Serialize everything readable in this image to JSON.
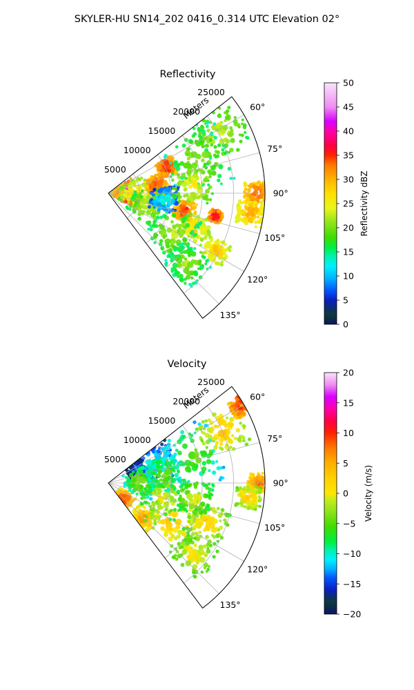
{
  "figure": {
    "title": "SKYLER-HU  SN14_202  0416_0.314 UTC Elevation 02°"
  },
  "chart_data": [
    {
      "type": "heatmap",
      "projection": "polar-sector",
      "title": "Reflectivity",
      "range_label": "Meters",
      "range_ticks": [
        "5000",
        "10000",
        "15000",
        "20000",
        "25000"
      ],
      "range_max": 25000,
      "azimuth_range": [
        52,
        143
      ],
      "azimuth_ticks": [
        "60°",
        "75°",
        "90°",
        "105°",
        "120°",
        "135°"
      ],
      "grid": true,
      "colorbar": {
        "label": "Reflectivity dBZ",
        "min": 0,
        "max": 50,
        "ticks": [
          "0",
          "5",
          "10",
          "15",
          "20",
          "25",
          "30",
          "35",
          "40",
          "45",
          "50"
        ],
        "stops": [
          {
            "v": 0,
            "c": "#0c1565"
          },
          {
            "v": 2,
            "c": "#0d3b37"
          },
          {
            "v": 5,
            "c": "#0a1fc0"
          },
          {
            "v": 7,
            "c": "#0455ff"
          },
          {
            "v": 9.5,
            "c": "#00b2ff"
          },
          {
            "v": 12,
            "c": "#00f0ff"
          },
          {
            "v": 14,
            "c": "#00f2b0"
          },
          {
            "v": 16,
            "c": "#00f040"
          },
          {
            "v": 18,
            "c": "#40dc00"
          },
          {
            "v": 21,
            "c": "#8ee41a"
          },
          {
            "v": 24,
            "c": "#e8f51c"
          },
          {
            "v": 27,
            "c": "#ffe100"
          },
          {
            "v": 30,
            "c": "#ffb300"
          },
          {
            "v": 33,
            "c": "#ff7a00"
          },
          {
            "v": 35,
            "c": "#ff2200"
          },
          {
            "v": 37,
            "c": "#ff0044"
          },
          {
            "v": 40,
            "c": "#ff00aa"
          },
          {
            "v": 42,
            "c": "#d800ff"
          },
          {
            "v": 45,
            "c": "#f08df2"
          },
          {
            "v": 50,
            "c": "#fae3fa"
          }
        ]
      },
      "cells": [
        {
          "az": 88,
          "r": 2800,
          "v": 40,
          "size": 2200
        },
        {
          "az": 86,
          "r": 1600,
          "v": 33,
          "size": 1800
        },
        {
          "az": 92,
          "r": 4200,
          "v": 28,
          "size": 3000
        },
        {
          "az": 80,
          "r": 7800,
          "v": 36,
          "size": 2200
        },
        {
          "az": 66,
          "r": 10200,
          "v": 37,
          "size": 2000
        },
        {
          "az": 62,
          "r": 20500,
          "v": 24,
          "size": 5000
        },
        {
          "az": 70,
          "r": 15500,
          "v": 22,
          "size": 6000
        },
        {
          "az": 90,
          "r": 23800,
          "v": 35,
          "size": 2600
        },
        {
          "az": 98,
          "r": 23000,
          "v": 32,
          "size": 2800
        },
        {
          "az": 103,
          "r": 12500,
          "v": 36,
          "size": 2200
        },
        {
          "az": 108,
          "r": 6500,
          "v": 24,
          "size": 3500
        },
        {
          "az": 97,
          "r": 9000,
          "v": 14,
          "size": 2800
        },
        {
          "az": 112,
          "r": 15000,
          "v": 28,
          "size": 3000
        },
        {
          "az": 118,
          "r": 19500,
          "v": 30,
          "size": 2500
        },
        {
          "az": 122,
          "r": 12000,
          "v": 23,
          "size": 4500
        },
        {
          "az": 132,
          "r": 17000,
          "v": 22,
          "size": 4000
        },
        {
          "az": 102,
          "r": 17500,
          "v": 38,
          "size": 1400
        },
        {
          "az": 85,
          "r": 13500,
          "v": 26,
          "size": 4000
        }
      ]
    },
    {
      "type": "heatmap",
      "projection": "polar-sector",
      "title": "Velocity",
      "range_label": "Meters",
      "range_ticks": [
        "5000",
        "10000",
        "15000",
        "20000",
        "25000"
      ],
      "range_max": 25000,
      "azimuth_range": [
        52,
        143
      ],
      "azimuth_ticks": [
        "60°",
        "75°",
        "90°",
        "105°",
        "120°",
        "135°"
      ],
      "grid": true,
      "colorbar": {
        "label": "Velocity (m/s)",
        "min": -20,
        "max": 20,
        "ticks": [
          "−20",
          "−15",
          "−10",
          "−5",
          "0",
          "5",
          "10",
          "15",
          "20"
        ],
        "stops": [
          {
            "v": -20,
            "c": "#0c1565"
          },
          {
            "v": -18,
            "c": "#0d3b37"
          },
          {
            "v": -16,
            "c": "#0a1fc0"
          },
          {
            "v": -14,
            "c": "#0455ff"
          },
          {
            "v": -12.5,
            "c": "#00b2ff"
          },
          {
            "v": -11,
            "c": "#00f0ff"
          },
          {
            "v": -9.5,
            "c": "#00f2b0"
          },
          {
            "v": -8,
            "c": "#00f040"
          },
          {
            "v": -5.5,
            "c": "#40dc00"
          },
          {
            "v": -3,
            "c": "#8ee41a"
          },
          {
            "v": -1,
            "c": "#c8ec1c"
          },
          {
            "v": 0,
            "c": "#ffe600"
          },
          {
            "v": 2.5,
            "c": "#ffd000"
          },
          {
            "v": 5,
            "c": "#ffb000"
          },
          {
            "v": 7.5,
            "c": "#ff7a00"
          },
          {
            "v": 10,
            "c": "#ff2200"
          },
          {
            "v": 12,
            "c": "#ff0044"
          },
          {
            "v": 14,
            "c": "#ff00aa"
          },
          {
            "v": 16,
            "c": "#d800ff"
          },
          {
            "v": 18,
            "c": "#f08df2"
          },
          {
            "v": 20,
            "c": "#fae3fa"
          }
        ]
      },
      "cells": [
        {
          "az": 64,
          "r": 5000,
          "v": -12,
          "size": 2000
        },
        {
          "az": 68,
          "r": 8500,
          "v": -8,
          "size": 3500
        },
        {
          "az": 72,
          "r": 14000,
          "v": -4,
          "size": 6000
        },
        {
          "az": 66,
          "r": 20000,
          "v": 4,
          "size": 4500
        },
        {
          "az": 60,
          "r": 24500,
          "v": 12,
          "size": 2200
        },
        {
          "az": 58,
          "r": 25500,
          "v": 15,
          "size": 1200
        },
        {
          "az": 90,
          "r": 24000,
          "v": 9,
          "size": 2200
        },
        {
          "az": 96,
          "r": 22500,
          "v": 4,
          "size": 2500
        },
        {
          "az": 138,
          "r": 3500,
          "v": 10,
          "size": 2000
        },
        {
          "az": 135,
          "r": 8000,
          "v": 7,
          "size": 2500
        },
        {
          "az": 120,
          "r": 12000,
          "v": 4,
          "size": 5000
        },
        {
          "az": 112,
          "r": 17000,
          "v": 3,
          "size": 4000
        },
        {
          "az": 130,
          "r": 18000,
          "v": 2,
          "size": 4000
        },
        {
          "az": 104,
          "r": 9000,
          "v": 1,
          "size": 4000
        },
        {
          "az": 100,
          "r": 14000,
          "v": 0,
          "size": 3500
        },
        {
          "az": 88,
          "r": 5000,
          "v": -2,
          "size": 3000
        },
        {
          "az": 82,
          "r": 9000,
          "v": -3,
          "size": 3500
        }
      ]
    }
  ]
}
